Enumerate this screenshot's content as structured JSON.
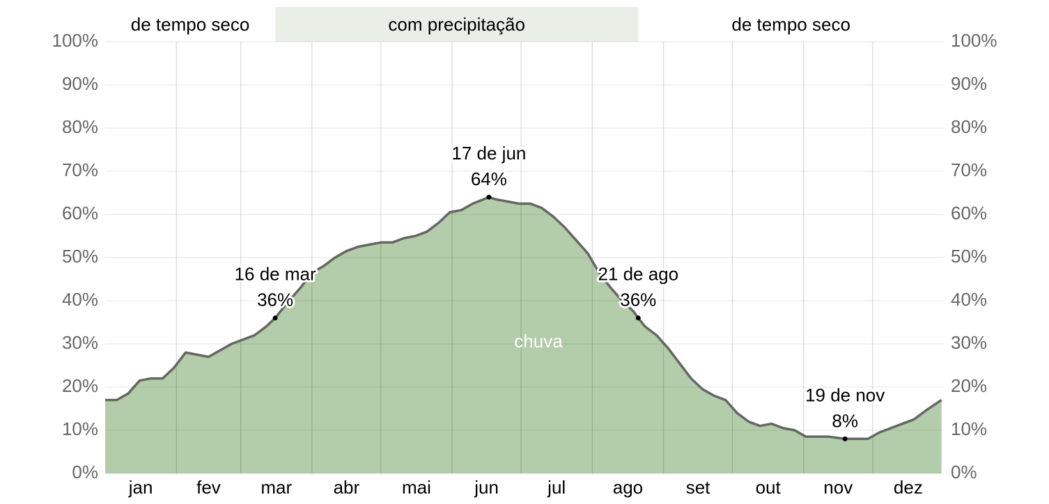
{
  "chart_data": {
    "type": "area",
    "seasons": [
      {
        "label": "de tempo seco",
        "start": 0,
        "end": 74,
        "shaded": false
      },
      {
        "label": "com precipitação",
        "start": 74,
        "end": 232,
        "shaded": true
      },
      {
        "label": "de tempo seco",
        "start": 232,
        "end": 365,
        "shaded": false
      }
    ],
    "x": [
      0,
      5,
      10,
      15,
      20,
      25,
      30,
      35,
      40,
      45,
      50,
      55,
      60,
      65,
      70,
      74,
      80,
      85,
      90,
      95,
      100,
      105,
      110,
      115,
      120,
      125,
      130,
      135,
      140,
      145,
      150,
      155,
      160,
      167,
      170,
      175,
      180,
      185,
      190,
      195,
      200,
      205,
      210,
      215,
      220,
      225,
      230,
      232,
      235,
      240,
      245,
      250,
      255,
      260,
      265,
      270,
      275,
      280,
      285,
      290,
      295,
      300,
      305,
      310,
      315,
      322,
      327,
      332,
      337,
      342,
      347,
      352,
      357,
      364
    ],
    "series": [
      {
        "name": "chuva",
        "color": "#b3cca9",
        "line_color": "#666666",
        "values": [
          17,
          17,
          18.5,
          21.5,
          22,
          22,
          24.5,
          28,
          27.5,
          27,
          28.5,
          30,
          31,
          32,
          34,
          36,
          40,
          43,
          46.5,
          48,
          50,
          51.5,
          52.5,
          53,
          53.5,
          53.5,
          54.5,
          55,
          56,
          58,
          60.5,
          61,
          62.5,
          64,
          63.5,
          63,
          62.5,
          62.5,
          61.5,
          59.5,
          57,
          54,
          51,
          46.5,
          43,
          40,
          37.5,
          36,
          34,
          32,
          29,
          25.5,
          22,
          19.5,
          18,
          17,
          14,
          12,
          11,
          11.5,
          10.5,
          10,
          8.5,
          8.5,
          8.5,
          8,
          8,
          8,
          9.5,
          10.5,
          11.5,
          12.5,
          14.5,
          17
        ]
      }
    ],
    "annotations": [
      {
        "label": "16 de mar",
        "x": 74,
        "value": 36,
        "value_label": "36%"
      },
      {
        "label": "17 de jun",
        "x": 167,
        "value": 64,
        "value_label": "64%"
      },
      {
        "label": "21 de ago",
        "x": 232,
        "value": 36,
        "value_label": "36%"
      },
      {
        "label": "19 de nov",
        "x": 322,
        "value": 8,
        "value_label": "8%"
      }
    ],
    "xlim": [
      0,
      365
    ],
    "xticks": [
      {
        "value": 0,
        "label": "jan"
      },
      {
        "value": 31,
        "label": "fev"
      },
      {
        "value": 59,
        "label": "mar"
      },
      {
        "value": 90,
        "label": "abr"
      },
      {
        "value": 120,
        "label": "mai"
      },
      {
        "value": 151,
        "label": "jun"
      },
      {
        "value": 181,
        "label": "jul"
      },
      {
        "value": 212,
        "label": "ago"
      },
      {
        "value": 243,
        "label": "set"
      },
      {
        "value": 273,
        "label": "out"
      },
      {
        "value": 304,
        "label": "nov"
      },
      {
        "value": 334,
        "label": "dez"
      }
    ],
    "ylim": [
      0,
      100
    ],
    "yticks": [
      {
        "value": 0,
        "label": "0%"
      },
      {
        "value": 10,
        "label": "10%"
      },
      {
        "value": 20,
        "label": "20%"
      },
      {
        "value": 30,
        "label": "30%"
      },
      {
        "value": 40,
        "label": "40%"
      },
      {
        "value": 50,
        "label": "50%"
      },
      {
        "value": 60,
        "label": "60%"
      },
      {
        "value": 70,
        "label": "70%"
      },
      {
        "value": 80,
        "label": "80%"
      },
      {
        "value": 90,
        "label": "90%"
      },
      {
        "value": 100,
        "label": "100%"
      }
    ],
    "grid": true,
    "season_color": "#e9efe6"
  }
}
